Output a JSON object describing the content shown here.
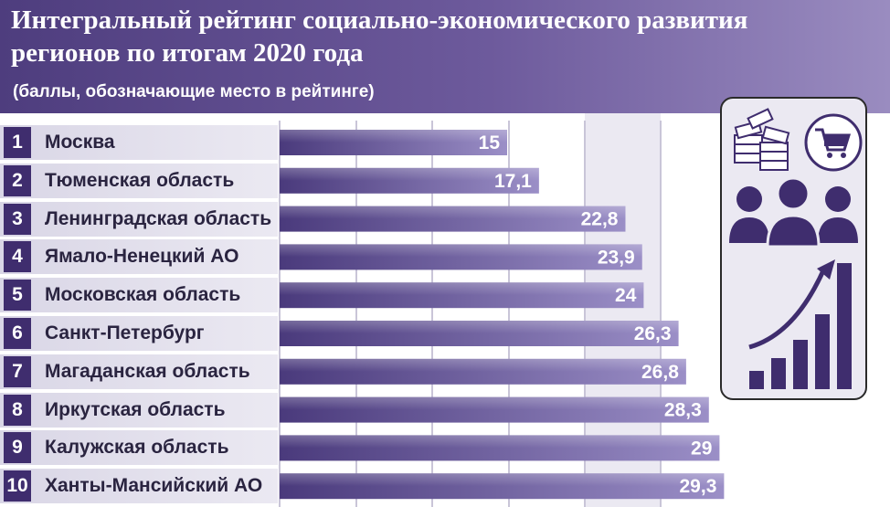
{
  "header": {
    "title": "Интегральный рейтинг социально-экономического развития регионов по итогам 2020 года",
    "subtitle": "(баллы, обозначающие место в рейтинге)"
  },
  "colors": {
    "header_start": "#4e3d7e",
    "bar_start": "#4a3a7c",
    "bar_end": "#9b8fc7",
    "rank_box": "#3f2d6e"
  },
  "icons": [
    "money-stack-icon",
    "shopping-cart-icon",
    "people-icon",
    "growth-chart-icon"
  ],
  "chart_data": {
    "type": "bar",
    "orientation": "horizontal",
    "title": "Интегральный рейтинг социально-экономического развития регионов по итогам 2020 года",
    "subtitle": "(баллы, обозначающие место в рейтинге)",
    "ranks": [
      "1",
      "2",
      "3",
      "4",
      "5",
      "6",
      "7",
      "8",
      "9",
      "10"
    ],
    "categories": [
      "Москва",
      "Тюменская область",
      "Ленинградская область",
      "Ямало-Ненецкий АО",
      "Московская область",
      "Санкт-Петербург",
      "Магаданская область",
      "Иркутская область",
      "Калужская область",
      "Ханты-Мансийский АО"
    ],
    "values": [
      15,
      17.1,
      22.8,
      23.9,
      24,
      26.3,
      26.8,
      28.3,
      29,
      29.3
    ],
    "value_labels": [
      "15",
      "17,1",
      "22,8",
      "23,9",
      "24",
      "26,3",
      "26,8",
      "28,3",
      "29",
      "29,3"
    ],
    "grid": true
  }
}
